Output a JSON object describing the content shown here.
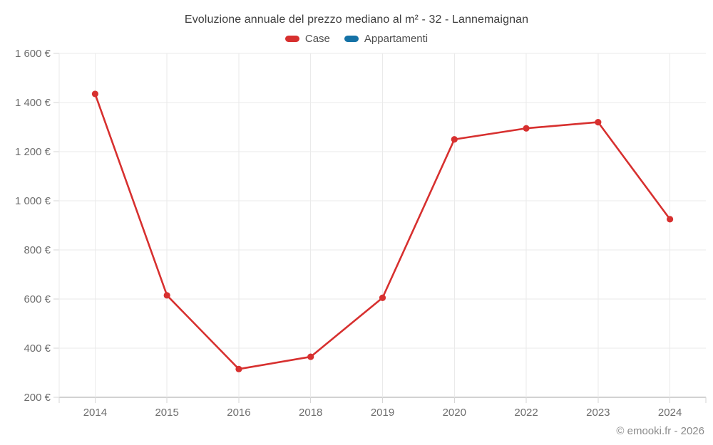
{
  "title": "Evoluzione annuale del prezzo mediano al m² - 32 - Lannemaignan",
  "attribution": "© emooki.fr - 2026",
  "legend": [
    {
      "label": "Case",
      "color": "#d7302f"
    },
    {
      "label": "Appartamenti",
      "color": "#1572a6"
    }
  ],
  "colors": {
    "background": "#ffffff",
    "title_text": "#3e3e3e",
    "legend_text": "#4e4e4e",
    "axis_text": "#6d6d6d",
    "attribution_text": "#8a8a8a",
    "grid_line": "#eaeaea",
    "axis_line": "#a6a6a6",
    "tick": "#d6d6d6",
    "case_red": "#d7302f",
    "appartamenti_blue": "#1572a6"
  },
  "chart_data": {
    "type": "line",
    "title": "Evoluzione annuale del prezzo mediano al m² - 32 - Lannemaignan",
    "categories": [
      "2014",
      "2015",
      "2016",
      "2018",
      "2019",
      "2020",
      "2022",
      "2023",
      "2024"
    ],
    "series": [
      {
        "name": "Case",
        "color": "#d7302f",
        "values": [
          1435,
          615,
          315,
          365,
          605,
          1250,
          1295,
          1320,
          925
        ]
      },
      {
        "name": "Appartamenti",
        "color": "#1572a6",
        "values": []
      }
    ],
    "xlabel": "",
    "ylabel": "",
    "ylim": [
      200,
      1600
    ],
    "yticks": [
      {
        "value": 200,
        "label": "200 €"
      },
      {
        "value": 400,
        "label": "400 €"
      },
      {
        "value": 600,
        "label": "600 €"
      },
      {
        "value": 800,
        "label": "800 €"
      },
      {
        "value": 1000,
        "label": "1 000 €"
      },
      {
        "value": 1200,
        "label": "1 200 €"
      },
      {
        "value": 1400,
        "label": "1 400 €"
      },
      {
        "value": 1600,
        "label": "1 600 €"
      }
    ],
    "grid": true,
    "legend_position": "top",
    "point_style": "circle"
  }
}
